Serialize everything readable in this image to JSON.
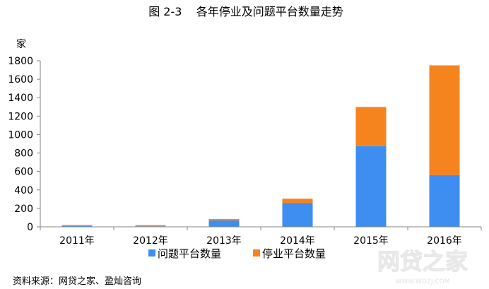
{
  "chart_data": {
    "type": "bar",
    "stacked": true,
    "title": "图 2-3    各年停业及问题平台数量走势",
    "ylabel": "家",
    "xlabel": "",
    "categories": [
      "2011年",
      "2012年",
      "2013年",
      "2014年",
      "2015年",
      "2016年"
    ],
    "series": [
      {
        "name": "问题平台数量",
        "color": "#3d8ef0",
        "values": [
          10,
          6,
          70,
          260,
          875,
          560
        ]
      },
      {
        "name": "停业平台数量",
        "color": "#f5841f",
        "values": [
          10,
          12,
          15,
          45,
          425,
          1190
        ]
      }
    ],
    "ylim": [
      0,
      1800
    ],
    "yticks": [
      "0",
      "200",
      "400",
      "600",
      "800",
      "1000",
      "1200",
      "1400",
      "1600",
      "1800"
    ],
    "grid": false,
    "legend_position": "bottom"
  },
  "source_note": "资料来源：网贷之家、盈灿咨询",
  "watermark": {
    "text": "网贷之家",
    "subtext": "WWW.WDZJ.COM"
  }
}
